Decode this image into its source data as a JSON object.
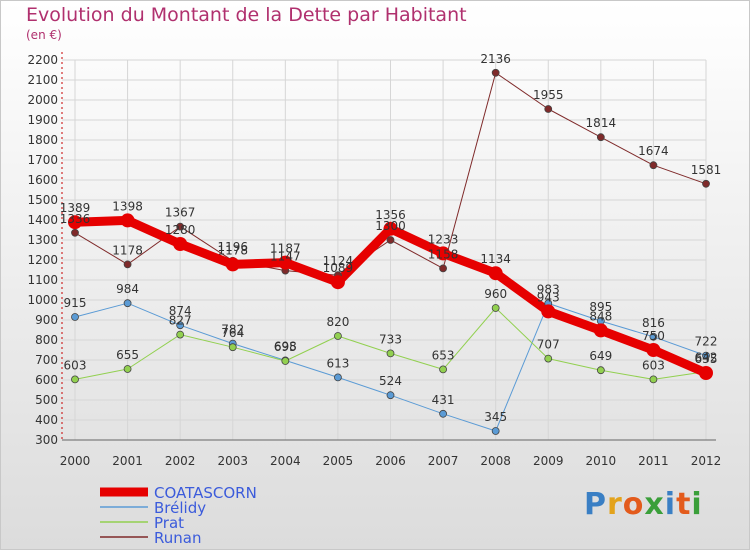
{
  "chart_data": {
    "type": "line",
    "title": "Evolution du Montant de la Dette par Habitant",
    "subtitle": "(en €)",
    "x": [
      "2000",
      "2001",
      "2002",
      "2003",
      "2004",
      "2005",
      "2006",
      "2007",
      "2008",
      "2009",
      "2010",
      "2011",
      "2012"
    ],
    "ylim": [
      300,
      2200
    ],
    "yticks": [
      300,
      400,
      500,
      600,
      700,
      800,
      900,
      1000,
      1100,
      1200,
      1300,
      1400,
      1500,
      1600,
      1700,
      1800,
      1900,
      2000,
      2100,
      2200
    ],
    "grid": true,
    "legend_position": "bottom-left",
    "series": [
      {
        "name": "COATASCORN",
        "color": "#e60000",
        "width": 9,
        "values": [
          1389,
          1398,
          1280,
          1178,
          1187,
          1089,
          1356,
          1233,
          1134,
          943,
          848,
          750,
          635
        ]
      },
      {
        "name": "Brélidy",
        "color": "#5b9bd5",
        "width": 1,
        "values": [
          915,
          984,
          874,
          782,
          698,
          613,
          524,
          431,
          345,
          983,
          895,
          816,
          722
        ]
      },
      {
        "name": "Prat",
        "color": "#92d050",
        "width": 1,
        "values": [
          603,
          655,
          827,
          764,
          695,
          820,
          733,
          653,
          960,
          707,
          649,
          603,
          642
        ]
      },
      {
        "name": "Runan",
        "color": "#7f2a2a",
        "width": 1,
        "values": [
          1336,
          1178,
          1367,
          1196,
          1147,
          1124,
          1300,
          1158,
          2136,
          1955,
          1814,
          1674,
          1581
        ]
      }
    ]
  },
  "brand": {
    "letters": [
      "P",
      "r",
      "o",
      "x",
      "i",
      "t",
      "i"
    ],
    "colors": [
      "#3a7fc4",
      "#e3a31c",
      "#e35b1c",
      "#3a9f3a",
      "#3a7fc4",
      "#e35b1c",
      "#3a9f3a"
    ]
  }
}
